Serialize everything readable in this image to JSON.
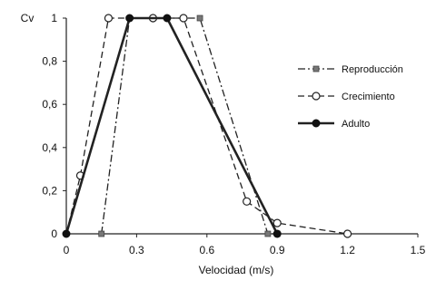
{
  "chart_data": {
    "type": "line",
    "title": "",
    "xlabel": "Velocidad (m/s)",
    "ylabel": "Cv",
    "xlim": [
      0,
      1.5
    ],
    "ylim": [
      0,
      1
    ],
    "xticks": [
      0,
      0.3,
      0.6,
      0.9,
      1.2,
      1.5
    ],
    "xtick_labels": [
      "0",
      "0.3",
      "0.6",
      "0.9",
      "1.2",
      "1.5"
    ],
    "yticks": [
      0,
      0.2,
      0.4,
      0.6,
      0.8,
      1
    ],
    "ytick_labels": [
      "0",
      "0,2",
      "0,4",
      "0,6",
      "0,8",
      "1"
    ],
    "grid": false,
    "legend_position": "right",
    "series": [
      {
        "name": "Reproducción",
        "style": "dash-dot",
        "marker": "square-gray",
        "x": [
          0.15,
          0.27,
          0.42,
          0.57,
          0.86,
          0.9
        ],
        "y": [
          0,
          1,
          1,
          1,
          0,
          0
        ],
        "markers_at": [
          0,
          3,
          4,
          5
        ]
      },
      {
        "name": "Crecimiento",
        "style": "dashed",
        "marker": "circle-open",
        "x": [
          0,
          0.06,
          0.18,
          0.37,
          0.5,
          0.77,
          0.9,
          1.2
        ],
        "y": [
          0,
          0.27,
          1,
          1,
          1,
          0.15,
          0.05,
          0
        ],
        "markers_at": [
          1,
          2,
          3,
          4,
          5,
          6,
          7
        ]
      },
      {
        "name": "Adulto",
        "style": "solid",
        "marker": "circle-filled",
        "x": [
          0,
          0.27,
          0.43,
          0.9
        ],
        "y": [
          0,
          1,
          1,
          0
        ],
        "markers_at": [
          0,
          1,
          2,
          3
        ]
      }
    ]
  }
}
